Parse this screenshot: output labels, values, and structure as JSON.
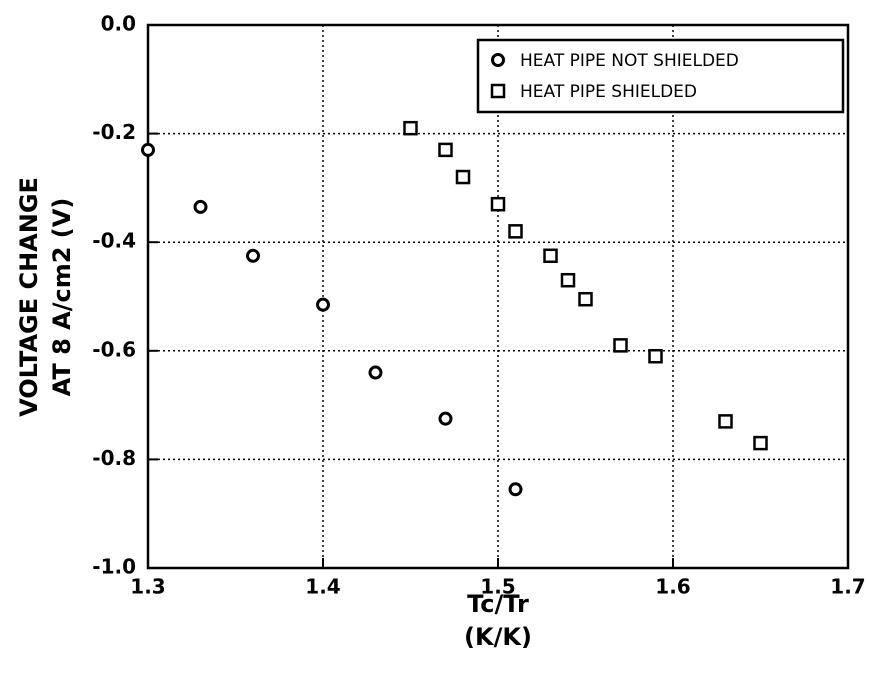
{
  "chart_data": {
    "type": "scatter",
    "xlabel": [
      "Tc/Tr",
      "(K/K)"
    ],
    "ylabel": [
      "VOLTAGE CHANGE",
      "AT 8 A/cm2 (V)"
    ],
    "xlim": [
      1.3,
      1.7
    ],
    "xticks": [
      1.3,
      1.4,
      1.5,
      1.6,
      1.7
    ],
    "ylim": [
      -1.0,
      0.0
    ],
    "yticks": [
      {
        "value": 0,
        "label": "0.0"
      },
      -0.2,
      -0.4,
      -0.6,
      -0.8,
      {
        "value": -1.0,
        "label": "-1.0"
      }
    ],
    "grid": true,
    "legend": "upper right",
    "series": [
      {
        "name": "HEAT PIPE NOT SHIELDED",
        "marker": "circle",
        "color": "#000000",
        "x": [
          1.3,
          1.33,
          1.36,
          1.4,
          1.43,
          1.47,
          1.51
        ],
        "values": [
          -0.23,
          -0.335,
          -0.425,
          -0.515,
          -0.64,
          -0.725,
          -0.855
        ]
      },
      {
        "name": "HEAT PIPE SHIELDED",
        "marker": "square",
        "color": "#000000",
        "x": [
          1.45,
          1.47,
          1.48,
          1.5,
          1.51,
          1.53,
          1.54,
          1.55,
          1.57,
          1.59,
          1.63,
          1.65
        ],
        "values": [
          -0.19,
          -0.23,
          -0.28,
          -0.33,
          -0.38,
          -0.425,
          -0.47,
          -0.505,
          -0.59,
          -0.61,
          -0.73,
          -0.77
        ]
      }
    ]
  }
}
